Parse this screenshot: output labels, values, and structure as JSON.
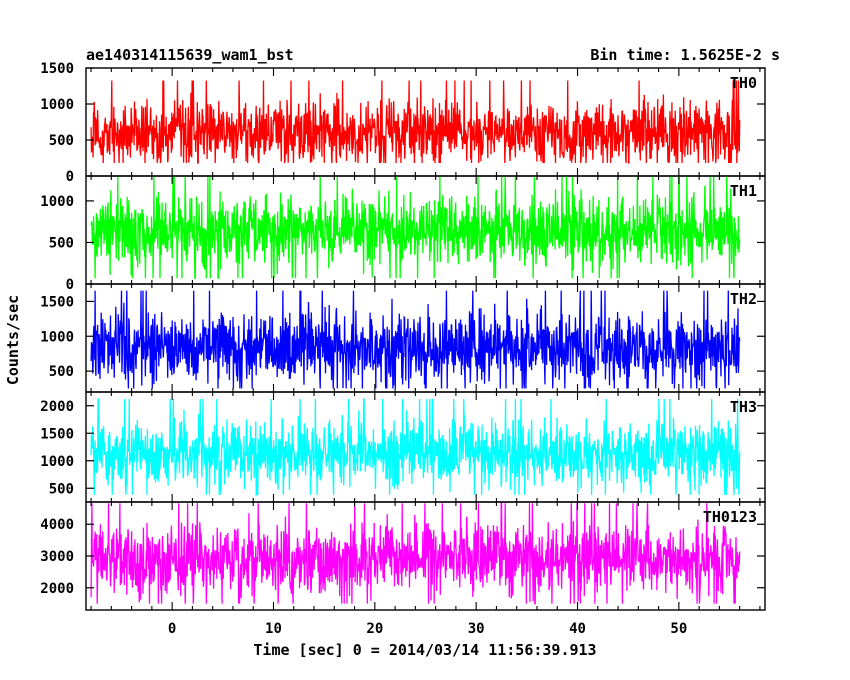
{
  "chart_data": {
    "type": "line",
    "title_left": "ae140314115639_wam1_bst",
    "title_right": "Bin time: 1.5625E-2 s",
    "xlabel": "Time [sec] 0 = 2014/03/14 11:56:39.913",
    "ylabel": "Counts/sec",
    "xlim": [
      -8.5,
      58.5
    ],
    "x_ticks": [
      0,
      10,
      20,
      30,
      40,
      50
    ],
    "data_x_range": [
      -8.0,
      56.0
    ],
    "bin_time": 0.015625,
    "panels": [
      {
        "name": "TH0",
        "color": "#ff0000",
        "ylim": [
          0,
          1500
        ],
        "y_ticks": [
          0,
          500,
          1000,
          1500
        ],
        "mean": 600,
        "low": 180,
        "high": 1500
      },
      {
        "name": "TH1",
        "color": "#00ff00",
        "ylim": [
          0,
          1300
        ],
        "y_ticks": [
          0,
          500,
          1000
        ],
        "mean": 640,
        "low": 70,
        "high": 1300
      },
      {
        "name": "TH2",
        "color": "#0000ff",
        "ylim": [
          200,
          1750
        ],
        "y_ticks": [
          500,
          1000,
          1500
        ],
        "mean": 830,
        "low": 250,
        "high": 1750
      },
      {
        "name": "TH3",
        "color": "#00ffff",
        "ylim": [
          250,
          2250
        ],
        "y_ticks": [
          500,
          1000,
          1500,
          2000
        ],
        "mean": 1150,
        "low": 380,
        "high": 2150
      },
      {
        "name": "TH0123",
        "color": "#ff00ff",
        "ylim": [
          1300,
          4700
        ],
        "y_ticks": [
          2000,
          3000,
          4000
        ],
        "mean": 2900,
        "low": 1500,
        "high": 4700
      }
    ]
  }
}
